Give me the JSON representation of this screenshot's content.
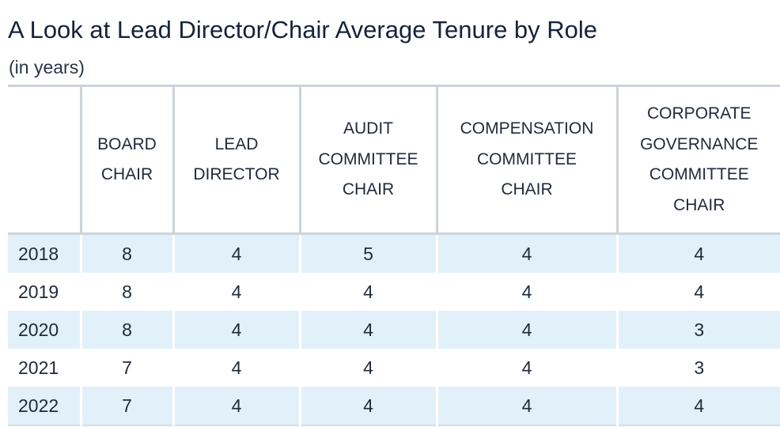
{
  "title": "A Look at Lead Director/Chair Average Tenure by Role",
  "subtitle": "(in years)",
  "chart_data": {
    "type": "table",
    "title": "A Look at Lead Director/Chair Average Tenure by Role",
    "subtitle": "(in years)",
    "columns": [
      {
        "key": "board_chair",
        "lines": [
          "BOARD",
          "CHAIR"
        ]
      },
      {
        "key": "lead_director",
        "lines": [
          "LEAD",
          "DIRECTOR"
        ]
      },
      {
        "key": "audit_committee_chair",
        "lines": [
          "AUDIT",
          "COMMITTEE",
          "CHAIR"
        ]
      },
      {
        "key": "compensation_committee_chair",
        "lines": [
          "COMPENSATION",
          "COMMITTEE",
          "CHAIR"
        ]
      },
      {
        "key": "corporate_governance_committee_chair",
        "lines": [
          "CORPORATE",
          "GOVERNANCE",
          "COMMITTEE",
          "CHAIR"
        ]
      }
    ],
    "rows": [
      {
        "year": "2018",
        "values": [
          "8",
          "4",
          "5",
          "4",
          "4"
        ]
      },
      {
        "year": "2019",
        "values": [
          "8",
          "4",
          "4",
          "4",
          "4"
        ]
      },
      {
        "year": "2020",
        "values": [
          "8",
          "4",
          "4",
          "4",
          "3"
        ]
      },
      {
        "year": "2021",
        "values": [
          "7",
          "4",
          "4",
          "4",
          "3"
        ]
      },
      {
        "year": "2022",
        "values": [
          "7",
          "4",
          "4",
          "4",
          "4"
        ]
      }
    ]
  },
  "colors": {
    "shaded_row": "#e2f1f9",
    "grid_line": "#cdd3da",
    "text": "#1f2a3a"
  }
}
